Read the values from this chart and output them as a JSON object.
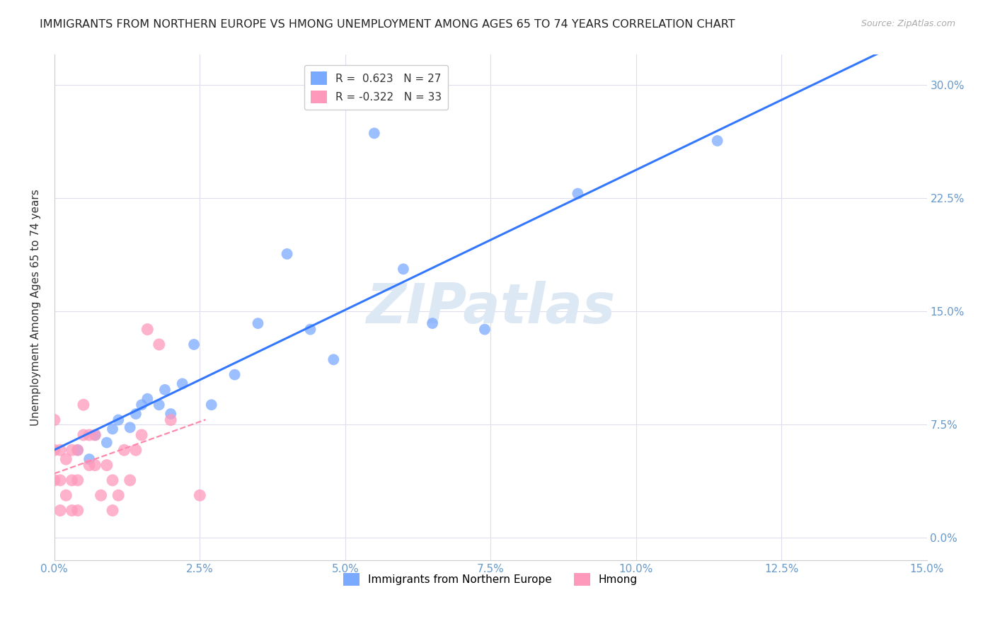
{
  "title": "IMMIGRANTS FROM NORTHERN EUROPE VS HMONG UNEMPLOYMENT AMONG AGES 65 TO 74 YEARS CORRELATION CHART",
  "source": "Source: ZipAtlas.com",
  "ylabel": "Unemployment Among Ages 65 to 74 years",
  "xlim": [
    0.0,
    0.15
  ],
  "ylim": [
    -0.015,
    0.32
  ],
  "xtick_positions": [
    0.0,
    0.025,
    0.05,
    0.075,
    0.1,
    0.125,
    0.15
  ],
  "xtick_labels": [
    "0.0%",
    "2.5%",
    "5.0%",
    "7.5%",
    "10.0%",
    "12.5%",
    "15.0%"
  ],
  "yticks": [
    0.0,
    0.075,
    0.15,
    0.225,
    0.3
  ],
  "ytick_labels": [
    "0.0%",
    "7.5%",
    "15.0%",
    "22.5%",
    "30.0%"
  ],
  "watermark": "ZIPatlas",
  "R_blue": 0.623,
  "N_blue": 27,
  "R_pink": -0.322,
  "N_pink": 33,
  "blue_scatter_x": [
    0.004,
    0.006,
    0.007,
    0.009,
    0.01,
    0.011,
    0.013,
    0.014,
    0.015,
    0.016,
    0.018,
    0.019,
    0.02,
    0.022,
    0.024,
    0.027,
    0.031,
    0.035,
    0.04,
    0.044,
    0.048,
    0.055,
    0.06,
    0.065,
    0.074,
    0.09,
    0.114
  ],
  "blue_scatter_y": [
    0.058,
    0.052,
    0.068,
    0.063,
    0.072,
    0.078,
    0.073,
    0.082,
    0.088,
    0.092,
    0.088,
    0.098,
    0.082,
    0.102,
    0.128,
    0.088,
    0.108,
    0.142,
    0.188,
    0.138,
    0.118,
    0.268,
    0.178,
    0.142,
    0.138,
    0.228,
    0.263
  ],
  "pink_scatter_x": [
    0.0,
    0.0,
    0.0,
    0.001,
    0.001,
    0.001,
    0.002,
    0.002,
    0.003,
    0.003,
    0.003,
    0.004,
    0.004,
    0.004,
    0.005,
    0.005,
    0.006,
    0.006,
    0.007,
    0.007,
    0.008,
    0.009,
    0.01,
    0.01,
    0.011,
    0.012,
    0.013,
    0.014,
    0.015,
    0.016,
    0.018,
    0.02,
    0.025
  ],
  "pink_scatter_y": [
    0.038,
    0.058,
    0.078,
    0.018,
    0.038,
    0.058,
    0.028,
    0.052,
    0.018,
    0.038,
    0.058,
    0.018,
    0.038,
    0.058,
    0.068,
    0.088,
    0.048,
    0.068,
    0.048,
    0.068,
    0.028,
    0.048,
    0.018,
    0.038,
    0.028,
    0.058,
    0.038,
    0.058,
    0.068,
    0.138,
    0.128,
    0.078,
    0.028
  ],
  "blue_color": "#7aaaff",
  "pink_color": "#ff99bb",
  "blue_line_color": "#3377ff",
  "pink_line_color": "#ff88aa",
  "background_color": "#ffffff",
  "grid_color": "#ddddee",
  "title_color": "#222222",
  "axis_color": "#6699cc",
  "legend_top_label_blue": "R =  0.623   N = 27",
  "legend_top_label_pink": "R = -0.322   N = 33",
  "legend_bot_label_blue": "Immigrants from Northern Europe",
  "legend_bot_label_pink": "Hmong"
}
